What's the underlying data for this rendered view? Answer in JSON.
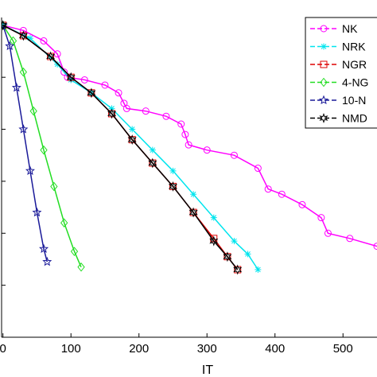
{
  "chart_data": {
    "type": "line",
    "xlabel": "IT",
    "ylabel": "",
    "xlim": [
      0,
      550
    ],
    "x_ticks": [
      0,
      100,
      200,
      300,
      400,
      500
    ],
    "x_tick_labels": [
      "0",
      "100",
      "200",
      "300",
      "400",
      "500"
    ],
    "ylim": [
      -12,
      0.3
    ],
    "y_scale": "log",
    "grid": false,
    "legend_position": "top-right",
    "series": [
      {
        "name": "NK",
        "color": "#ff00ff",
        "marker": "circle",
        "points": [
          [
            0,
            0
          ],
          [
            30,
            -0.2
          ],
          [
            60,
            -0.6
          ],
          [
            80,
            -1.1
          ],
          [
            90,
            -1.8
          ],
          [
            95,
            -2.0
          ],
          [
            120,
            -2.1
          ],
          [
            150,
            -2.3
          ],
          [
            170,
            -2.6
          ],
          [
            178,
            -3.0
          ],
          [
            182,
            -3.2
          ],
          [
            210,
            -3.3
          ],
          [
            240,
            -3.5
          ],
          [
            262,
            -3.8
          ],
          [
            268,
            -4.2
          ],
          [
            273,
            -4.6
          ],
          [
            300,
            -4.8
          ],
          [
            340,
            -5.0
          ],
          [
            375,
            -5.5
          ],
          [
            390,
            -6.3
          ],
          [
            410,
            -6.5
          ],
          [
            440,
            -6.9
          ],
          [
            468,
            -7.4
          ],
          [
            478,
            -8.0
          ],
          [
            510,
            -8.2
          ],
          [
            550,
            -8.5
          ]
        ]
      },
      {
        "name": "NRK",
        "color": "#00e5ee",
        "marker": "asterisk",
        "points": [
          [
            0,
            0
          ],
          [
            40,
            -0.5
          ],
          [
            80,
            -1.5
          ],
          [
            100,
            -2.1
          ],
          [
            130,
            -2.6
          ],
          [
            160,
            -3.2
          ],
          [
            190,
            -4.0
          ],
          [
            220,
            -4.8
          ],
          [
            250,
            -5.6
          ],
          [
            280,
            -6.5
          ],
          [
            310,
            -7.4
          ],
          [
            340,
            -8.3
          ],
          [
            360,
            -8.8
          ],
          [
            375,
            -9.4
          ]
        ]
      },
      {
        "name": "NGR",
        "color": "#dd0000",
        "marker": "square",
        "points": [
          [
            0,
            0
          ],
          [
            30,
            -0.4
          ],
          [
            70,
            -1.2
          ],
          [
            100,
            -2.0
          ],
          [
            130,
            -2.6
          ],
          [
            160,
            -3.4
          ],
          [
            190,
            -4.4
          ],
          [
            220,
            -5.3
          ],
          [
            250,
            -6.2
          ],
          [
            280,
            -7.2
          ],
          [
            310,
            -8.2
          ],
          [
            330,
            -8.9
          ],
          [
            345,
            -9.4
          ]
        ]
      },
      {
        "name": "4-NG",
        "color": "#22dd22",
        "marker": "diamond",
        "points": [
          [
            0,
            0
          ],
          [
            15,
            -0.6
          ],
          [
            30,
            -1.8
          ],
          [
            45,
            -3.3
          ],
          [
            60,
            -4.8
          ],
          [
            75,
            -6.2
          ],
          [
            90,
            -7.6
          ],
          [
            105,
            -8.7
          ],
          [
            115,
            -9.3
          ]
        ]
      },
      {
        "name": "10-N",
        "color": "#1a1a99",
        "marker": "star",
        "points": [
          [
            0,
            0
          ],
          [
            10,
            -0.8
          ],
          [
            20,
            -2.4
          ],
          [
            30,
            -4.0
          ],
          [
            40,
            -5.6
          ],
          [
            50,
            -7.2
          ],
          [
            60,
            -8.6
          ],
          [
            65,
            -9.1
          ]
        ]
      },
      {
        "name": "NMD",
        "color": "#000000",
        "marker": "hexagram",
        "points": [
          [
            0,
            0
          ],
          [
            30,
            -0.4
          ],
          [
            70,
            -1.2
          ],
          [
            100,
            -2.0
          ],
          [
            130,
            -2.6
          ],
          [
            160,
            -3.4
          ],
          [
            190,
            -4.4
          ],
          [
            220,
            -5.3
          ],
          [
            250,
            -6.2
          ],
          [
            280,
            -7.2
          ],
          [
            310,
            -8.3
          ],
          [
            330,
            -8.9
          ],
          [
            345,
            -9.4
          ]
        ]
      }
    ]
  }
}
